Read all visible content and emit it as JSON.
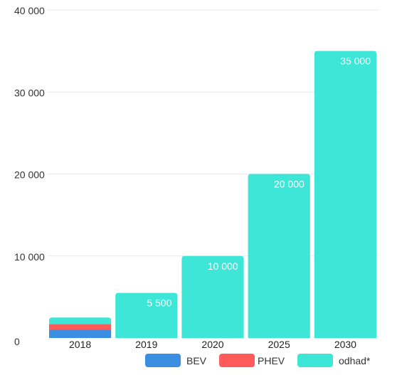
{
  "chart_data": {
    "type": "bar",
    "stacked": true,
    "categories": [
      "2018",
      "2019",
      "2020",
      "2025",
      "2030"
    ],
    "series": [
      {
        "name": "BEV",
        "color": "#3b8fe3",
        "values": [
          1000,
          0,
          0,
          0,
          0
        ]
      },
      {
        "name": "PHEV",
        "color": "#ff5b5b",
        "values": [
          700,
          0,
          0,
          0,
          0
        ]
      },
      {
        "name": "odhad*",
        "color": "#3ee6d8",
        "values": [
          800,
          5500,
          10000,
          20000,
          35000
        ]
      }
    ],
    "data_labels": [
      "",
      "5 500",
      "10 000",
      "20 000",
      "35 000"
    ],
    "y_ticks": [
      {
        "value": 0,
        "label": "0"
      },
      {
        "value": 10000,
        "label": "10 000"
      },
      {
        "value": 20000,
        "label": "20 000"
      },
      {
        "value": 30000,
        "label": "30 000"
      },
      {
        "value": 40000,
        "label": "40 000"
      }
    ],
    "ylim": [
      0,
      40000
    ],
    "grid": true,
    "legend": "bottom"
  }
}
